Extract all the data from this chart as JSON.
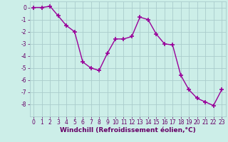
{
  "x": [
    0,
    1,
    2,
    3,
    4,
    5,
    6,
    7,
    8,
    9,
    10,
    11,
    12,
    13,
    14,
    15,
    16,
    17,
    18,
    19,
    20,
    21,
    22,
    23
  ],
  "y": [
    0.0,
    0.0,
    0.1,
    -0.7,
    -1.5,
    -2.0,
    -4.5,
    -5.0,
    -5.2,
    -3.8,
    -2.6,
    -2.6,
    -2.4,
    -0.8,
    -1.0,
    -2.2,
    -3.0,
    -3.1,
    -5.6,
    -6.8,
    -7.5,
    -7.8,
    -8.1,
    -6.8
  ],
  "line_color": "#990099",
  "marker": "+",
  "marker_size": 5,
  "line_width": 1.0,
  "bg_color": "#cceee8",
  "grid_color": "#aacccc",
  "xlabel": "Windchill (Refroidissement éolien,°C)",
  "xlabel_fontsize": 6.5,
  "xlabel_color": "#660066",
  "tick_fontsize": 5.5,
  "tick_color": "#660066",
  "ylim": [
    -9,
    0.5
  ],
  "xlim": [
    -0.5,
    23.5
  ],
  "yticks": [
    0,
    -1,
    -2,
    -3,
    -4,
    -5,
    -6,
    -7,
    -8
  ],
  "xticks": [
    0,
    1,
    2,
    3,
    4,
    5,
    6,
    7,
    8,
    9,
    10,
    11,
    12,
    13,
    14,
    15,
    16,
    17,
    18,
    19,
    20,
    21,
    22,
    23
  ]
}
